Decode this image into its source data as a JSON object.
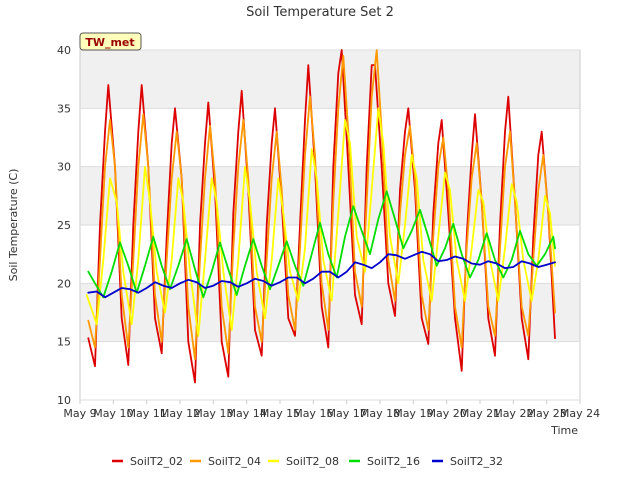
{
  "chart_data": {
    "type": "line",
    "title": "Soil Temperature Set 2",
    "xlabel": "Time",
    "ylabel": "Soil Temperature (C)",
    "ylim": [
      10,
      40
    ],
    "yticks": [
      10,
      15,
      20,
      25,
      30,
      35,
      40
    ],
    "xlim": [
      9,
      24
    ],
    "xticks": [
      9,
      10,
      11,
      12,
      13,
      14,
      15,
      16,
      17,
      18,
      19,
      20,
      21,
      22,
      23,
      24
    ],
    "xtick_labels": [
      "May 9",
      "May 10",
      "May 11",
      "May 12",
      "May 13",
      "May 14",
      "May 15",
      "May 16",
      "May 17",
      "May 18",
      "May 19",
      "May 20",
      "May 21",
      "May 22",
      "May 23",
      "May 24"
    ],
    "station_label": "TW_met",
    "grid": true,
    "legend_position": "bottom",
    "series": [
      {
        "name": "SoilT2_02",
        "color": "#dd0000",
        "x": [
          9.25,
          9.45,
          9.6,
          9.75,
          9.85,
          10.05,
          10.25,
          10.45,
          10.6,
          10.75,
          10.85,
          11.05,
          11.25,
          11.45,
          11.6,
          11.75,
          11.85,
          12.05,
          12.25,
          12.45,
          12.6,
          12.75,
          12.85,
          13.05,
          13.25,
          13.45,
          13.6,
          13.75,
          13.85,
          14.05,
          14.25,
          14.45,
          14.6,
          14.75,
          14.85,
          15.05,
          15.25,
          15.45,
          15.6,
          15.75,
          15.85,
          16.05,
          16.25,
          16.45,
          16.6,
          16.75,
          16.85,
          17.05,
          17.25,
          17.45,
          17.6,
          17.75,
          17.85,
          18.05,
          18.25,
          18.45,
          18.6,
          18.75,
          18.85,
          19.05,
          19.25,
          19.45,
          19.6,
          19.75,
          19.85,
          20.05,
          20.25,
          20.45,
          20.6,
          20.75,
          20.85,
          21.05,
          21.25,
          21.45,
          21.6,
          21.75,
          21.85,
          22.05,
          22.25,
          22.45,
          22.6,
          22.75,
          22.85,
          23.05,
          23.25
        ],
        "values": [
          15.3,
          12.9,
          25,
          33,
          37,
          30,
          17,
          13,
          25,
          33,
          37,
          30,
          17,
          14,
          24,
          32,
          35,
          29,
          15,
          11.5,
          25,
          32,
          35.5,
          28,
          15,
          12,
          26,
          33,
          36.5,
          28,
          16,
          13.8,
          25,
          32,
          35,
          27,
          17,
          15.5,
          25,
          34,
          38.7,
          30,
          18,
          14.5,
          30,
          38,
          40,
          30,
          19,
          16.5,
          30,
          38.7,
          38.7,
          30,
          20,
          17.2,
          28,
          33,
          35,
          28,
          17,
          14.8,
          26,
          32,
          34,
          26,
          17,
          12.5,
          24,
          31,
          34.5,
          27,
          17,
          13.8,
          25,
          33,
          36,
          27,
          17,
          13.5,
          24,
          31,
          33,
          26,
          15.3
        ]
      },
      {
        "name": "SoilT2_04",
        "color": "#ff9900",
        "x": [
          9.25,
          9.45,
          9.6,
          9.75,
          9.9,
          10.05,
          10.25,
          10.45,
          10.6,
          10.75,
          10.9,
          11.05,
          11.25,
          11.45,
          11.6,
          11.75,
          11.9,
          12.05,
          12.25,
          12.45,
          12.6,
          12.75,
          12.9,
          13.05,
          13.25,
          13.45,
          13.6,
          13.75,
          13.9,
          14.05,
          14.25,
          14.45,
          14.6,
          14.75,
          14.9,
          15.05,
          15.25,
          15.45,
          15.6,
          15.75,
          15.9,
          16.05,
          16.25,
          16.45,
          16.6,
          16.75,
          16.9,
          17.05,
          17.25,
          17.45,
          17.6,
          17.75,
          17.9,
          18.05,
          18.25,
          18.45,
          18.6,
          18.75,
          18.9,
          19.05,
          19.25,
          19.45,
          19.6,
          19.75,
          19.9,
          20.05,
          20.25,
          20.45,
          20.6,
          20.75,
          20.9,
          21.05,
          21.25,
          21.45,
          21.6,
          21.75,
          21.9,
          22.05,
          22.25,
          22.45,
          22.6,
          22.75,
          22.9,
          23.05,
          23.25
        ],
        "values": [
          16.8,
          14.5,
          22,
          30,
          34,
          30,
          19,
          14.5,
          22,
          30,
          34.5,
          30,
          19,
          15,
          22,
          29,
          33,
          29,
          18,
          13.5,
          22,
          29,
          33.5,
          29,
          18,
          14,
          23,
          30,
          34,
          29,
          18,
          15,
          22,
          29,
          33,
          28,
          19,
          16,
          23,
          31,
          36,
          31,
          20,
          16,
          27,
          35,
          39.5,
          33,
          21,
          18,
          27,
          36,
          40,
          33,
          22,
          18.5,
          26,
          31,
          33.5,
          29,
          19,
          16,
          24,
          30,
          32.5,
          28,
          18,
          14.5,
          23,
          29,
          32,
          27,
          18,
          15.5,
          23,
          30,
          33,
          27,
          18,
          15.5,
          22,
          28,
          31,
          26,
          17.5
        ]
      },
      {
        "name": "SoilT2_08",
        "color": "#ffff00",
        "x": [
          9.2,
          9.5,
          9.7,
          9.9,
          10.1,
          10.3,
          10.55,
          10.75,
          10.95,
          11.1,
          11.3,
          11.55,
          11.75,
          11.95,
          12.1,
          12.3,
          12.55,
          12.75,
          12.95,
          13.1,
          13.3,
          13.55,
          13.75,
          13.95,
          14.1,
          14.3,
          14.55,
          14.75,
          14.95,
          15.1,
          15.3,
          15.55,
          15.75,
          15.95,
          16.1,
          16.3,
          16.55,
          16.75,
          16.95,
          17.1,
          17.3,
          17.55,
          17.75,
          17.95,
          18.1,
          18.3,
          18.55,
          18.75,
          18.95,
          19.1,
          19.3,
          19.55,
          19.75,
          19.95,
          20.1,
          20.3,
          20.55,
          20.75,
          20.95,
          21.1,
          21.3,
          21.55,
          21.75,
          21.95,
          22.1,
          22.3,
          22.55,
          22.75,
          22.95,
          23.1,
          23.25
        ],
        "values": [
          19,
          16.5,
          22,
          29,
          27,
          21,
          16.5,
          22,
          30,
          27,
          21,
          17.5,
          22,
          29,
          27,
          21,
          15.5,
          22,
          29,
          27,
          21,
          16,
          22,
          30,
          27,
          21,
          17,
          22,
          29,
          26,
          21,
          18.5,
          23,
          31.5,
          29,
          22,
          18.5,
          26,
          34,
          32,
          24,
          21,
          28,
          35,
          32,
          24,
          20,
          25,
          31,
          29,
          22,
          18.5,
          24,
          29.5,
          28,
          22,
          18.5,
          23,
          28,
          27,
          22,
          18.5,
          23,
          28.5,
          27,
          22,
          18.5,
          22,
          27.5,
          26,
          21.5
        ]
      },
      {
        "name": "SoilT2_16",
        "color": "#00dd00",
        "x": [
          9.25,
          9.45,
          9.7,
          9.95,
          10.2,
          10.45,
          10.7,
          10.95,
          11.2,
          11.45,
          11.7,
          11.95,
          12.2,
          12.45,
          12.7,
          12.95,
          13.2,
          13.45,
          13.7,
          13.95,
          14.2,
          14.45,
          14.7,
          14.95,
          15.2,
          15.45,
          15.7,
          15.95,
          16.2,
          16.45,
          16.7,
          16.95,
          17.2,
          17.45,
          17.7,
          17.95,
          18.2,
          18.45,
          18.7,
          18.95,
          19.2,
          19.45,
          19.7,
          19.95,
          20.2,
          20.45,
          20.7,
          20.95,
          21.2,
          21.45,
          21.7,
          21.95,
          22.2,
          22.45,
          22.7,
          22.95,
          23.2,
          23.25
        ],
        "values": [
          21,
          20,
          18.8,
          21,
          23.5,
          21.5,
          19.2,
          21.5,
          24,
          21.5,
          19.5,
          21.5,
          23.8,
          21.2,
          18.8,
          21,
          23.5,
          21.2,
          19,
          21.5,
          23.8,
          21.5,
          19.5,
          21.5,
          23.6,
          21.5,
          19.8,
          22.5,
          25.2,
          22.5,
          20.5,
          24,
          26.6,
          24.5,
          22.5,
          25.5,
          27.9,
          25.5,
          23,
          24.5,
          26.3,
          24,
          21.5,
          23,
          25.1,
          22.5,
          20.5,
          22,
          24.3,
          22,
          20.5,
          22,
          24.5,
          22.5,
          21.5,
          22.5,
          24,
          23
        ]
      },
      {
        "name": "SoilT2_32",
        "color": "#0000cc",
        "x": [
          9.25,
          9.5,
          9.75,
          10,
          10.25,
          10.5,
          10.75,
          11,
          11.25,
          11.5,
          11.75,
          12,
          12.25,
          12.5,
          12.75,
          13,
          13.25,
          13.5,
          13.75,
          14,
          14.25,
          14.5,
          14.75,
          15,
          15.25,
          15.5,
          15.75,
          16,
          16.25,
          16.5,
          16.75,
          17,
          17.25,
          17.5,
          17.75,
          18,
          18.25,
          18.5,
          18.75,
          19,
          19.25,
          19.5,
          19.75,
          20,
          20.25,
          20.5,
          20.75,
          21,
          21.25,
          21.5,
          21.75,
          22,
          22.25,
          22.5,
          22.75,
          23,
          23.25
        ],
        "values": [
          19.2,
          19.3,
          18.8,
          19.2,
          19.6,
          19.5,
          19.2,
          19.6,
          20.1,
          19.8,
          19.6,
          20,
          20.3,
          20.1,
          19.6,
          19.8,
          20.2,
          20.1,
          19.7,
          20,
          20.4,
          20.2,
          19.8,
          20.1,
          20.5,
          20.5,
          20,
          20.4,
          21,
          21,
          20.5,
          21,
          21.8,
          21.6,
          21.3,
          21.8,
          22.5,
          22.4,
          22.1,
          22.4,
          22.7,
          22.5,
          21.9,
          22,
          22.3,
          22.1,
          21.7,
          21.6,
          21.9,
          21.7,
          21.3,
          21.4,
          21.9,
          21.7,
          21.4,
          21.6,
          21.8
        ]
      }
    ]
  }
}
